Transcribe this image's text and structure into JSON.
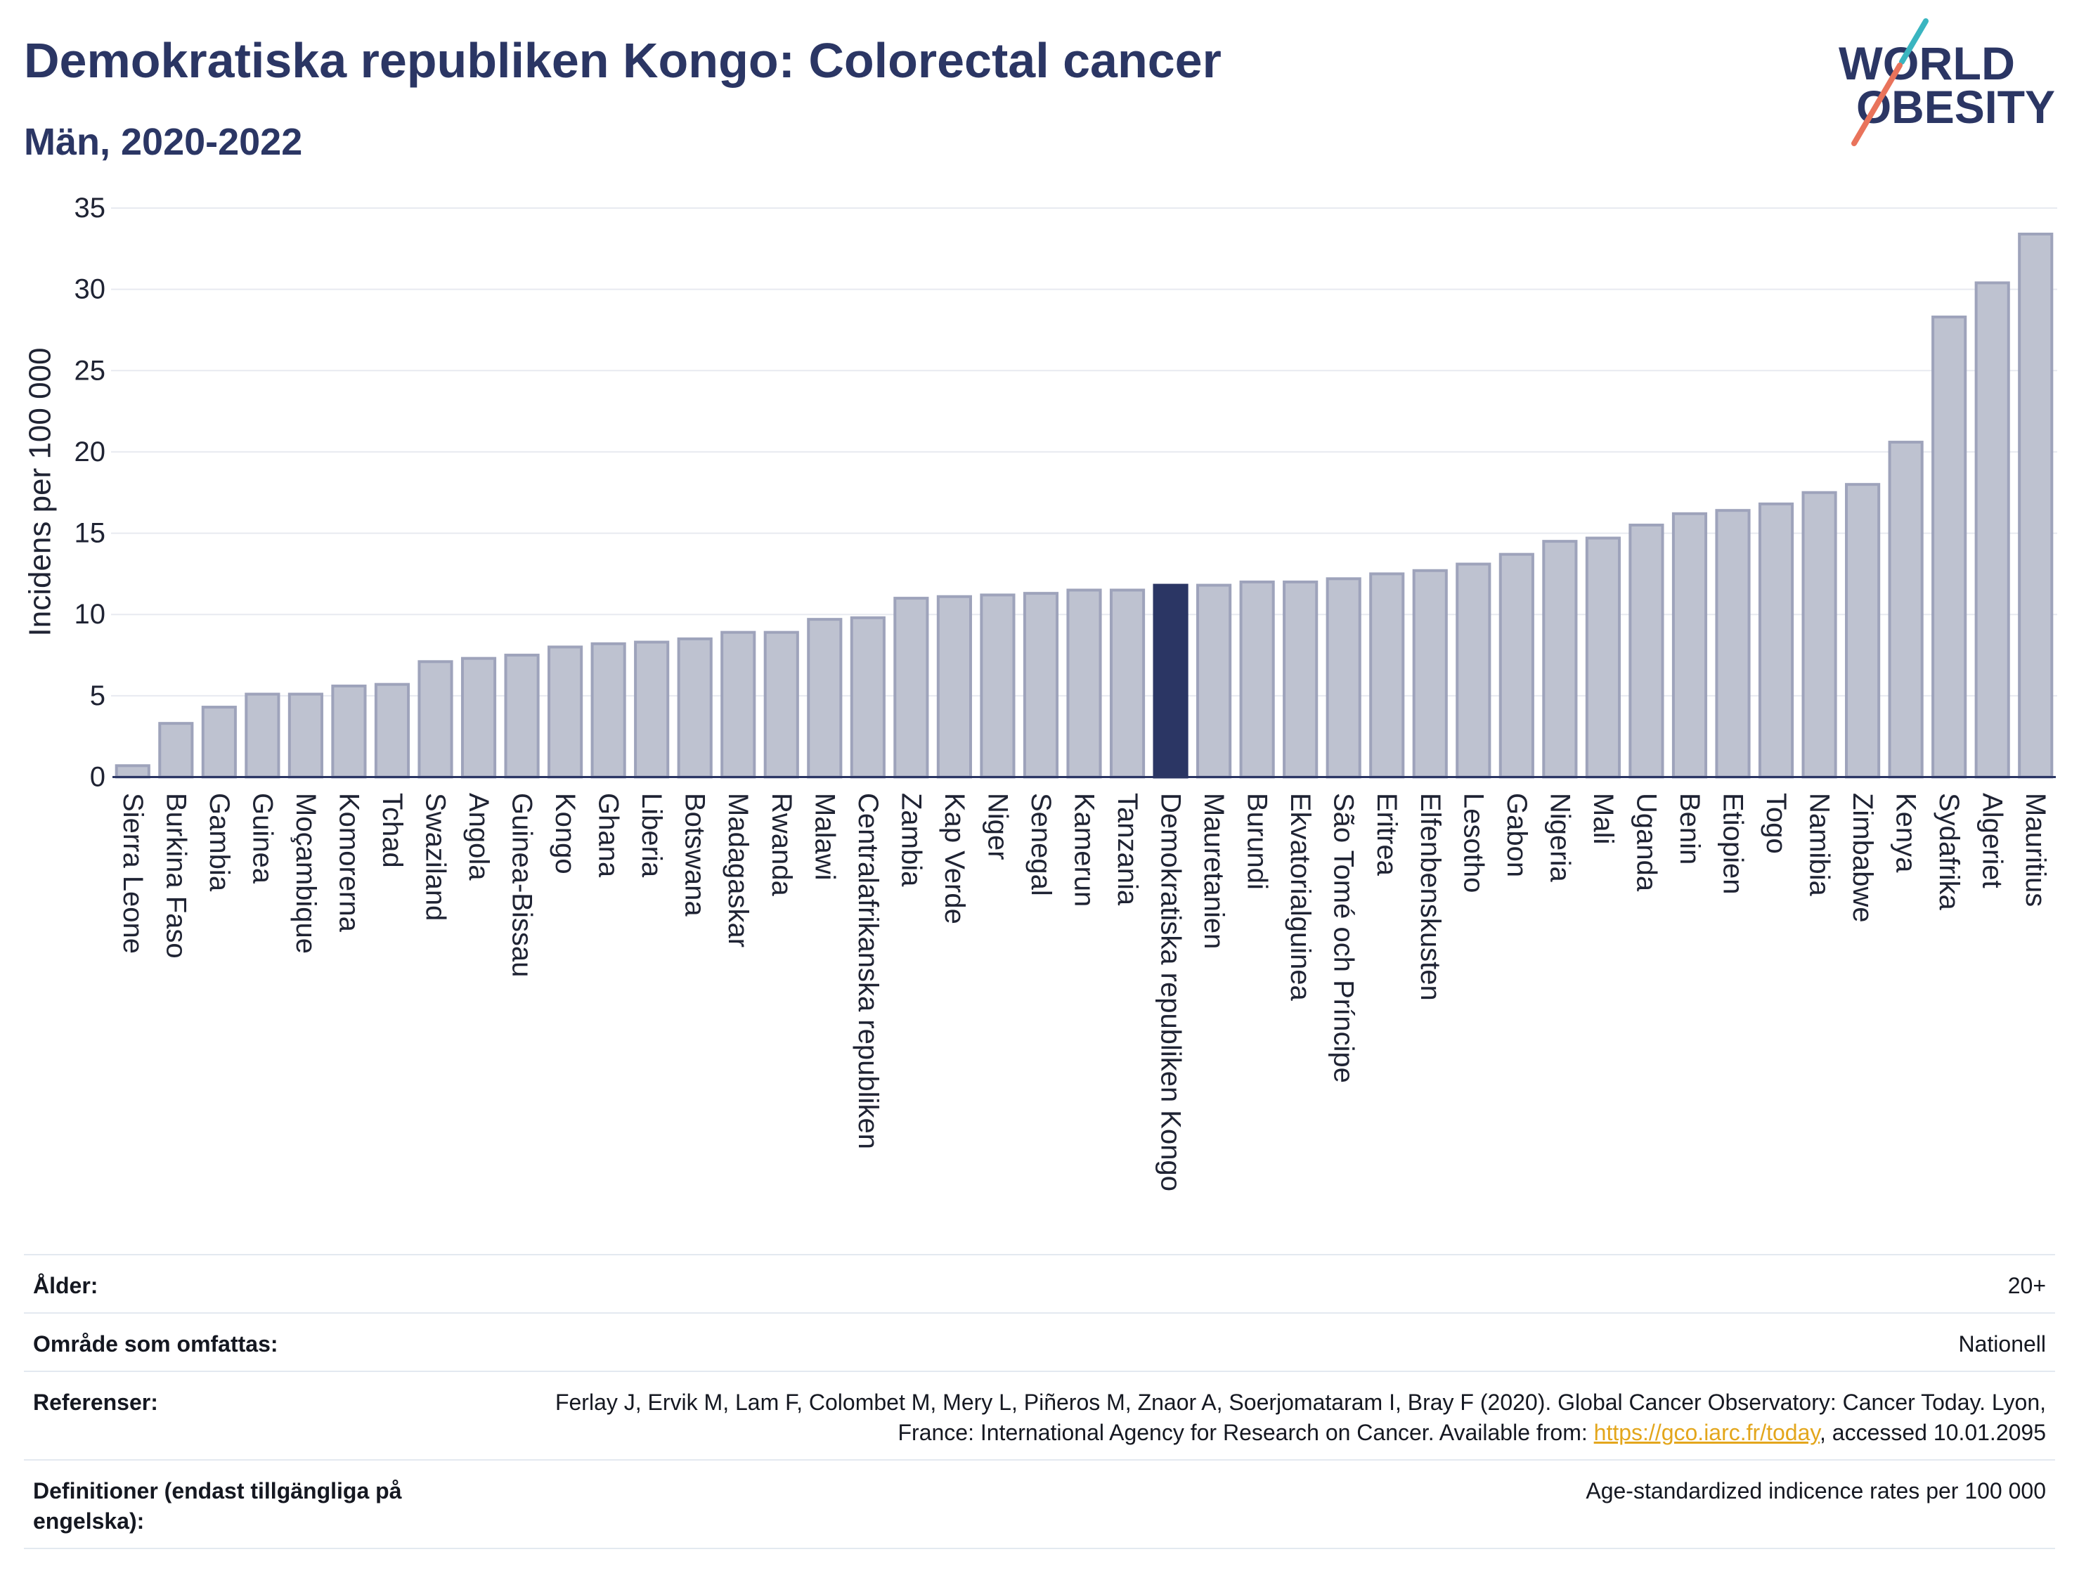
{
  "chart_data": {
    "type": "bar",
    "title": "Demokratiska republiken Kongo: Colorectal cancer",
    "subtitle": "Män, 2020-2022",
    "ylabel": "Incidens per 100 000",
    "ylim": [
      0,
      35
    ],
    "yticks": [
      0,
      5,
      10,
      15,
      20,
      25,
      30,
      35
    ],
    "grid": true,
    "legend": false,
    "categories": [
      "Sierra Leone",
      "Burkina Faso",
      "Gambia",
      "Guinea",
      "Moçambique",
      "Komorerna",
      "Tchad",
      "Swaziland",
      "Angola",
      "Guinea-Bissau",
      "Kongo",
      "Ghana",
      "Liberia",
      "Botswana",
      "Madagaskar",
      "Rwanda",
      "Malawi",
      "Centralafrikanska republiken",
      "Zambia",
      "Kap Verde",
      "Niger",
      "Senegal",
      "Kamerun",
      "Tanzania",
      "Demokratiska republiken Kongo",
      "Mauretanien",
      "Burundi",
      "Ekvatorialguinea",
      "São Tomé och Príncipe",
      "Eritrea",
      "Elfenbenskusten",
      "Lesotho",
      "Gabon",
      "Nigeria",
      "Mali",
      "Uganda",
      "Benin",
      "Etiopien",
      "Togo",
      "Namibia",
      "Zimbabwe",
      "Kenya",
      "Sydafrika",
      "Algeriet",
      "Mauritius"
    ],
    "values": [
      0.7,
      3.3,
      4.3,
      5.1,
      5.1,
      5.6,
      5.7,
      7.1,
      7.3,
      7.5,
      8.0,
      8.2,
      8.3,
      8.5,
      8.9,
      8.9,
      9.7,
      9.8,
      11.0,
      11.1,
      11.2,
      11.3,
      11.5,
      11.5,
      11.8,
      11.8,
      12.0,
      12.0,
      12.2,
      12.5,
      12.7,
      13.1,
      13.7,
      14.5,
      14.7,
      15.5,
      16.2,
      16.4,
      16.8,
      17.5,
      18.0,
      20.6,
      28.3,
      30.4,
      33.4
    ],
    "highlight_index": 24,
    "colors": {
      "bar_fill": "#bec2d0",
      "bar_outline": "#9ea3bb",
      "highlight": "#2b3664",
      "gridline": "#e8eaf0",
      "axis": "#2b3664"
    }
  },
  "logo": {
    "line1": "WORLD",
    "line2": "OBESITY",
    "colors": {
      "text": "#2b3664",
      "slash_top": "#3ab5c0",
      "slash_bottom": "#e9735b"
    }
  },
  "meta": {
    "age": {
      "label": "Ålder:",
      "value": "20+"
    },
    "area": {
      "label": "Område som omfattas:",
      "value": "Nationell"
    },
    "references": {
      "label": "Referenser:",
      "text_before": "Ferlay J, Ervik M, Lam F, Colombet M, Mery L, Piñeros M, Znaor A, Soerjomataram I, Bray F (2020). Global Cancer Observatory: Cancer Today. Lyon, France: International Agency for Research on Cancer. Available from: ",
      "link": "https://gco.iarc.fr/today",
      "text_after": ", accessed 10.01.2095"
    },
    "definitions": {
      "label": "Definitioner (endast tillgängliga på engelska):",
      "value": "Age-standardized indicence rates per 100 000"
    }
  },
  "theme": {
    "title_color": "#2b3664",
    "link_color": "#e3a61c",
    "divider_color": "#e3e9f0"
  }
}
